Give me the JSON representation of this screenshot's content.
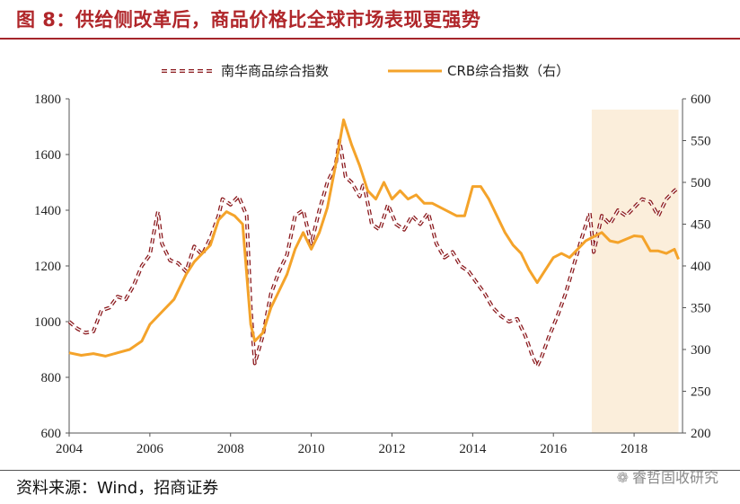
{
  "title": "图 8：供给侧改革后，商品价格比全球市场表现更强势",
  "source": "资料来源：Wind，招商证券",
  "watermark": "睿哲固收研究",
  "watermark_icon": "wechat-icon",
  "chart_data": {
    "type": "line",
    "title": "图 8：供给侧改革后，商品价格比全球市场表现更强势",
    "xlabel": "",
    "ylabel": "",
    "x_range": [
      2004,
      2019.2
    ],
    "x_ticks": [
      "2004",
      "2006",
      "2008",
      "2010",
      "2012",
      "2014",
      "2016",
      "2018"
    ],
    "y_left": {
      "range": [
        600,
        1800
      ],
      "ticks": [
        "600",
        "800",
        "1000",
        "1200",
        "1400",
        "1600",
        "1800"
      ]
    },
    "y_right": {
      "range": [
        200,
        600
      ],
      "ticks": [
        "200",
        "250",
        "300",
        "350",
        "400",
        "450",
        "500",
        "550",
        "600"
      ]
    },
    "legend_position": "top-center",
    "highlight_region": {
      "x_start": 2016.95,
      "x_end": 2019.1,
      "color": "#fbeedb"
    },
    "series": [
      {
        "name": "南华商品综合指数",
        "axis": "left",
        "color": "#8b1a1e",
        "style": "dashed-double",
        "points": [
          [
            2004.0,
            1000
          ],
          [
            2004.2,
            975
          ],
          [
            2004.4,
            960
          ],
          [
            2004.6,
            965
          ],
          [
            2004.8,
            1040
          ],
          [
            2005.0,
            1050
          ],
          [
            2005.2,
            1090
          ],
          [
            2005.4,
            1080
          ],
          [
            2005.6,
            1130
          ],
          [
            2005.8,
            1200
          ],
          [
            2006.0,
            1240
          ],
          [
            2006.1,
            1320
          ],
          [
            2006.2,
            1395
          ],
          [
            2006.3,
            1280
          ],
          [
            2006.5,
            1220
          ],
          [
            2006.7,
            1210
          ],
          [
            2006.9,
            1180
          ],
          [
            2007.1,
            1270
          ],
          [
            2007.3,
            1240
          ],
          [
            2007.5,
            1300
          ],
          [
            2007.7,
            1380
          ],
          [
            2007.8,
            1440
          ],
          [
            2008.0,
            1420
          ],
          [
            2008.2,
            1450
          ],
          [
            2008.4,
            1380
          ],
          [
            2008.5,
            1050
          ],
          [
            2008.6,
            850
          ],
          [
            2008.8,
            950
          ],
          [
            2009.0,
            1100
          ],
          [
            2009.2,
            1180
          ],
          [
            2009.4,
            1240
          ],
          [
            2009.6,
            1380
          ],
          [
            2009.8,
            1400
          ],
          [
            2010.0,
            1280
          ],
          [
            2010.2,
            1400
          ],
          [
            2010.4,
            1500
          ],
          [
            2010.6,
            1560
          ],
          [
            2010.7,
            1650
          ],
          [
            2010.85,
            1520
          ],
          [
            2011.0,
            1500
          ],
          [
            2011.2,
            1450
          ],
          [
            2011.3,
            1500
          ],
          [
            2011.5,
            1350
          ],
          [
            2011.7,
            1330
          ],
          [
            2011.9,
            1420
          ],
          [
            2012.1,
            1350
          ],
          [
            2012.3,
            1330
          ],
          [
            2012.5,
            1380
          ],
          [
            2012.7,
            1350
          ],
          [
            2012.9,
            1390
          ],
          [
            2013.1,
            1280
          ],
          [
            2013.3,
            1230
          ],
          [
            2013.5,
            1250
          ],
          [
            2013.7,
            1200
          ],
          [
            2013.9,
            1180
          ],
          [
            2014.1,
            1140
          ],
          [
            2014.3,
            1100
          ],
          [
            2014.5,
            1050
          ],
          [
            2014.7,
            1020
          ],
          [
            2014.9,
            1000
          ],
          [
            2015.1,
            1010
          ],
          [
            2015.3,
            950
          ],
          [
            2015.5,
            870
          ],
          [
            2015.6,
            840
          ],
          [
            2015.7,
            870
          ],
          [
            2015.9,
            950
          ],
          [
            2016.1,
            1020
          ],
          [
            2016.3,
            1100
          ],
          [
            2016.5,
            1200
          ],
          [
            2016.7,
            1300
          ],
          [
            2016.9,
            1390
          ],
          [
            2017.0,
            1250
          ],
          [
            2017.2,
            1380
          ],
          [
            2017.4,
            1350
          ],
          [
            2017.6,
            1400
          ],
          [
            2017.8,
            1380
          ],
          [
            2018.0,
            1410
          ],
          [
            2018.2,
            1440
          ],
          [
            2018.4,
            1430
          ],
          [
            2018.6,
            1380
          ],
          [
            2018.8,
            1440
          ],
          [
            2019.0,
            1470
          ],
          [
            2019.1,
            1480
          ]
        ]
      },
      {
        "name": "CRB综合指数（右）",
        "axis": "right",
        "color": "#f4a32a",
        "style": "solid",
        "points": [
          [
            2004.0,
            296
          ],
          [
            2004.3,
            293
          ],
          [
            2004.6,
            295
          ],
          [
            2004.9,
            292
          ],
          [
            2005.2,
            296
          ],
          [
            2005.5,
            300
          ],
          [
            2005.8,
            310
          ],
          [
            2006.0,
            330
          ],
          [
            2006.3,
            345
          ],
          [
            2006.6,
            360
          ],
          [
            2006.9,
            390
          ],
          [
            2007.1,
            405
          ],
          [
            2007.3,
            415
          ],
          [
            2007.5,
            425
          ],
          [
            2007.7,
            455
          ],
          [
            2007.9,
            465
          ],
          [
            2008.1,
            460
          ],
          [
            2008.3,
            450
          ],
          [
            2008.5,
            330
          ],
          [
            2008.6,
            310
          ],
          [
            2008.8,
            320
          ],
          [
            2009.0,
            350
          ],
          [
            2009.2,
            370
          ],
          [
            2009.4,
            390
          ],
          [
            2009.6,
            420
          ],
          [
            2009.8,
            440
          ],
          [
            2010.0,
            420
          ],
          [
            2010.2,
            440
          ],
          [
            2010.4,
            470
          ],
          [
            2010.6,
            520
          ],
          [
            2010.8,
            575
          ],
          [
            2011.0,
            545
          ],
          [
            2011.2,
            520
          ],
          [
            2011.4,
            490
          ],
          [
            2011.6,
            480
          ],
          [
            2011.8,
            500
          ],
          [
            2012.0,
            480
          ],
          [
            2012.2,
            490
          ],
          [
            2012.4,
            480
          ],
          [
            2012.6,
            485
          ],
          [
            2012.8,
            475
          ],
          [
            2013.0,
            475
          ],
          [
            2013.2,
            470
          ],
          [
            2013.4,
            465
          ],
          [
            2013.6,
            460
          ],
          [
            2013.8,
            460
          ],
          [
            2014.0,
            495
          ],
          [
            2014.2,
            495
          ],
          [
            2014.4,
            480
          ],
          [
            2014.6,
            460
          ],
          [
            2014.8,
            440
          ],
          [
            2015.0,
            425
          ],
          [
            2015.2,
            415
          ],
          [
            2015.4,
            395
          ],
          [
            2015.6,
            380
          ],
          [
            2015.8,
            395
          ],
          [
            2016.0,
            410
          ],
          [
            2016.2,
            415
          ],
          [
            2016.4,
            410
          ],
          [
            2016.6,
            420
          ],
          [
            2016.8,
            430
          ],
          [
            2017.0,
            435
          ],
          [
            2017.2,
            440
          ],
          [
            2017.4,
            430
          ],
          [
            2017.6,
            428
          ],
          [
            2017.8,
            432
          ],
          [
            2018.0,
            436
          ],
          [
            2018.2,
            435
          ],
          [
            2018.4,
            418
          ],
          [
            2018.6,
            418
          ],
          [
            2018.8,
            415
          ],
          [
            2019.0,
            420
          ],
          [
            2019.1,
            408
          ]
        ]
      }
    ]
  }
}
